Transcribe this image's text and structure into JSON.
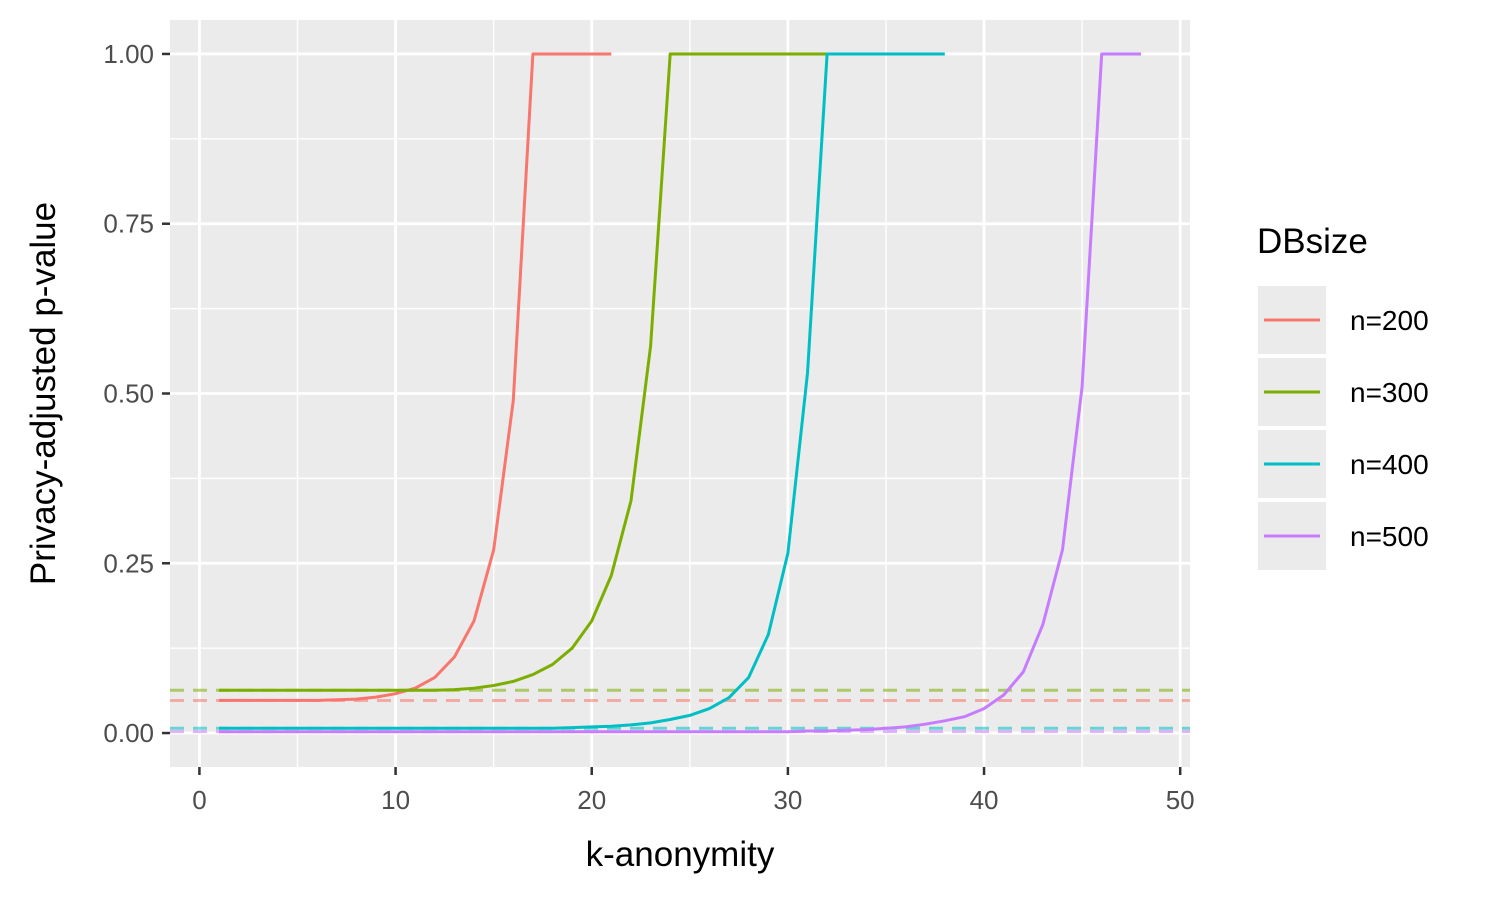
{
  "chart_data": {
    "type": "line",
    "xlabel": "k-anonymity",
    "ylabel": "Privacy-adjusted p-value",
    "xlim": [
      -1.5,
      50.5
    ],
    "ylim": [
      -0.05,
      1.05
    ],
    "x_ticks": [
      0,
      10,
      20,
      30,
      40,
      50
    ],
    "y_ticks": [
      0.0,
      0.25,
      0.5,
      0.75,
      1.0
    ],
    "x_tick_labels": [
      "0",
      "10",
      "20",
      "30",
      "40",
      "50"
    ],
    "y_tick_labels": [
      "0.00",
      "0.25",
      "0.50",
      "0.75",
      "1.00"
    ],
    "grid": true,
    "legend": {
      "title": "DBsize",
      "position": "right"
    },
    "series": [
      {
        "name": "n=200",
        "color": "#F8766D",
        "baseline": 0.048,
        "x": [
          1,
          2,
          3,
          4,
          5,
          6,
          7,
          8,
          9,
          10,
          11,
          12,
          13,
          14,
          15,
          16,
          17,
          18,
          19,
          20,
          21
        ],
        "y": [
          0.048,
          0.048,
          0.048,
          0.048,
          0.048,
          0.048,
          0.049,
          0.05,
          0.053,
          0.058,
          0.066,
          0.082,
          0.112,
          0.165,
          0.27,
          0.49,
          1.0,
          1.0,
          1.0,
          1.0,
          1.0
        ]
      },
      {
        "name": "n=300",
        "color": "#7CAE00",
        "baseline": 0.063,
        "x": [
          1,
          2,
          3,
          4,
          5,
          6,
          7,
          8,
          9,
          10,
          11,
          12,
          13,
          14,
          15,
          16,
          17,
          18,
          19,
          20,
          21,
          22,
          23,
          24,
          25,
          26,
          27,
          28,
          29,
          30,
          31,
          32
        ],
        "y": [
          0.063,
          0.063,
          0.063,
          0.063,
          0.063,
          0.063,
          0.063,
          0.063,
          0.063,
          0.063,
          0.063,
          0.063,
          0.064,
          0.066,
          0.07,
          0.076,
          0.086,
          0.101,
          0.125,
          0.165,
          0.232,
          0.342,
          0.57,
          1.0,
          1.0,
          1.0,
          1.0,
          1.0,
          1.0,
          1.0,
          1.0,
          1.0
        ]
      },
      {
        "name": "n=400",
        "color": "#00BFC4",
        "baseline": 0.007,
        "x": [
          1,
          2,
          3,
          4,
          5,
          6,
          7,
          8,
          9,
          10,
          11,
          12,
          13,
          14,
          15,
          16,
          17,
          18,
          19,
          20,
          21,
          22,
          23,
          24,
          25,
          26,
          27,
          28,
          29,
          30,
          31,
          32,
          33,
          34,
          35,
          36,
          37,
          38
        ],
        "y": [
          0.007,
          0.007,
          0.007,
          0.007,
          0.007,
          0.007,
          0.007,
          0.007,
          0.007,
          0.007,
          0.007,
          0.007,
          0.007,
          0.007,
          0.007,
          0.007,
          0.007,
          0.007,
          0.008,
          0.009,
          0.01,
          0.012,
          0.015,
          0.02,
          0.026,
          0.036,
          0.052,
          0.082,
          0.145,
          0.265,
          0.53,
          1.0,
          1.0,
          1.0,
          1.0,
          1.0,
          1.0,
          1.0
        ]
      },
      {
        "name": "n=500",
        "color": "#C77CFF",
        "baseline": 0.002,
        "x": [
          1,
          2,
          3,
          4,
          5,
          6,
          7,
          8,
          9,
          10,
          11,
          12,
          13,
          14,
          15,
          16,
          17,
          18,
          19,
          20,
          21,
          22,
          23,
          24,
          25,
          26,
          27,
          28,
          29,
          30,
          31,
          32,
          33,
          34,
          35,
          36,
          37,
          38,
          39,
          40,
          41,
          42,
          43,
          44,
          45,
          46,
          47,
          48
        ],
        "y": [
          0.002,
          0.002,
          0.002,
          0.002,
          0.002,
          0.002,
          0.002,
          0.002,
          0.002,
          0.002,
          0.002,
          0.002,
          0.002,
          0.002,
          0.002,
          0.002,
          0.002,
          0.002,
          0.002,
          0.002,
          0.002,
          0.002,
          0.002,
          0.002,
          0.002,
          0.002,
          0.002,
          0.002,
          0.002,
          0.002,
          0.003,
          0.003,
          0.004,
          0.005,
          0.007,
          0.009,
          0.013,
          0.018,
          0.024,
          0.036,
          0.056,
          0.09,
          0.16,
          0.27,
          0.51,
          1.0,
          1.0,
          1.0
        ]
      }
    ]
  }
}
